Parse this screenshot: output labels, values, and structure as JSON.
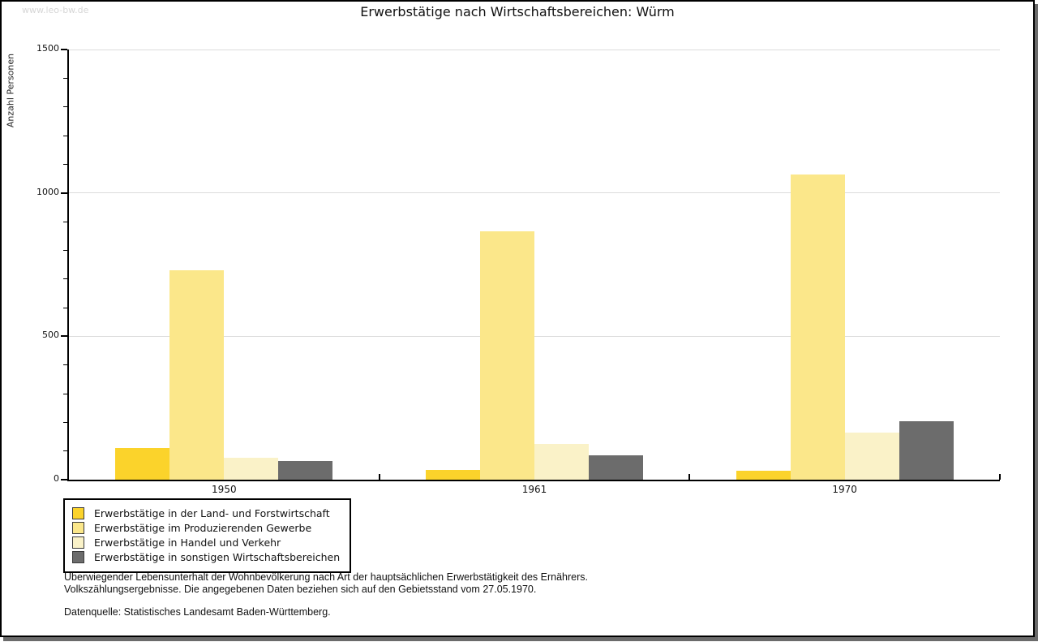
{
  "watermark": "www.leo-bw.de",
  "chart_data": {
    "type": "bar",
    "title": "Erwerbstätige nach Wirtschaftsbereichen: Würm",
    "xlabel": "",
    "ylabel": "Anzahl Personen",
    "ylim": [
      0,
      1500
    ],
    "y_major_ticks": [
      0,
      500,
      1000,
      1500
    ],
    "y_minor_step": 100,
    "gridlines": [
      500,
      1000,
      1500
    ],
    "grid": true,
    "legend_position": "bottom-left",
    "categories": [
      "1950",
      "1961",
      "1970"
    ],
    "series": [
      {
        "name": "Erwerbstätige in der Land- und Forstwirtschaft",
        "color": "#FBD32B",
        "values": [
          110,
          35,
          30
        ]
      },
      {
        "name": "Erwerbstätige im Produzierenden Gewerbe",
        "color": "#FBE78A",
        "values": [
          730,
          865,
          1065
        ]
      },
      {
        "name": "Erwerbstätige in Handel und Verkehr",
        "color": "#FAF2C8",
        "values": [
          75,
          125,
          165
        ]
      },
      {
        "name": "Erwerbstätige in sonstigen Wirtschaftsbereichen",
        "color": "#6C6C6C",
        "values": [
          65,
          85,
          205
        ]
      }
    ]
  },
  "notes": {
    "line1": "Überwiegender Lebensunterhalt der Wohnbevölkerung nach Art der hauptsächlichen Erwerbstätigkeit des Ernährers.",
    "line2": "Volkszählungsergebnisse. Die angegebenen Daten beziehen sich auf den Gebietsstand vom 27.05.1970.",
    "source": "Datenquelle: Statistisches Landesamt Baden-Württemberg."
  }
}
